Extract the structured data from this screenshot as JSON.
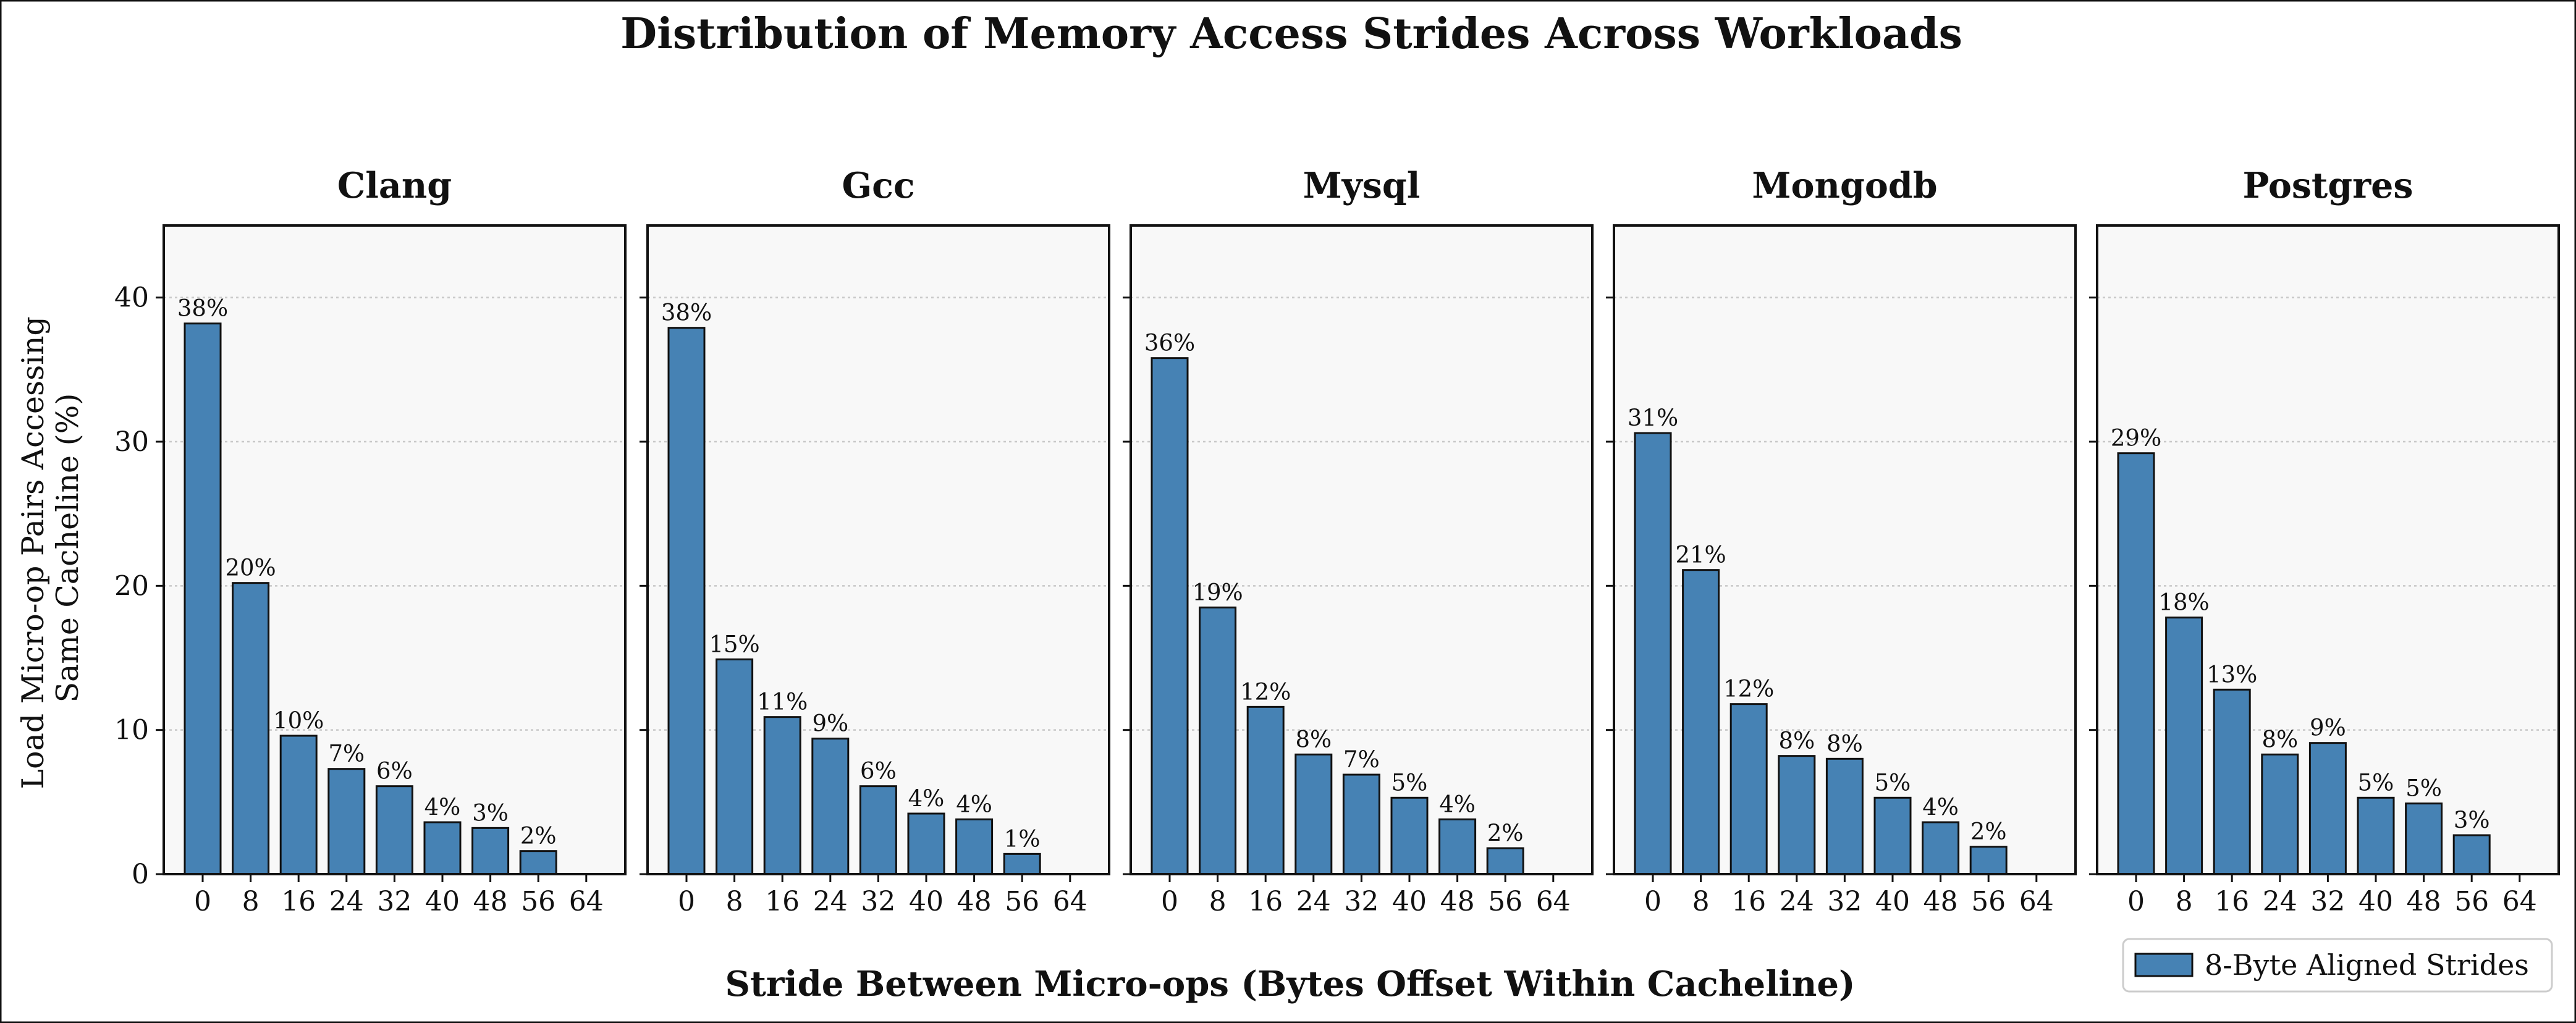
{
  "title": "Distribution of Memory Access Strides Across Workloads",
  "xlabel": "Stride Between Micro-ops (Bytes Offset Within Cacheline)",
  "ylabel_lines": [
    "Load Micro-op Pairs Accessing",
    "Same Cacheline (%)"
  ],
  "legend": {
    "label": "8-Byte Aligned Strides",
    "placement": "lower-right"
  },
  "colors": {
    "bar": "#4682b4",
    "bar_edge": "#111111",
    "panel_bg": "#f8f8f8",
    "grid": "#c8c8c8"
  },
  "chart_data": {
    "type": "bar",
    "categories": [
      "0",
      "8",
      "16",
      "24",
      "32",
      "40",
      "48",
      "56",
      "64"
    ],
    "ylim": [
      0,
      45
    ],
    "yticks": [
      0,
      10,
      20,
      30,
      40
    ],
    "grid": "horizontal-dotted",
    "series_name": "8-Byte Aligned Strides",
    "panels": [
      {
        "title": "Clang",
        "values": [
          38.2,
          20.2,
          9.6,
          7.3,
          6.1,
          3.6,
          3.2,
          1.6,
          0
        ],
        "labels": [
          "38%",
          "20%",
          "10%",
          "7%",
          "6%",
          "4%",
          "3%",
          "2%",
          ""
        ]
      },
      {
        "title": "Gcc",
        "values": [
          37.9,
          14.9,
          10.9,
          9.4,
          6.1,
          4.2,
          3.8,
          1.4,
          0
        ],
        "labels": [
          "38%",
          "15%",
          "11%",
          "9%",
          "6%",
          "4%",
          "4%",
          "1%",
          ""
        ]
      },
      {
        "title": "Mysql",
        "values": [
          35.8,
          18.5,
          11.6,
          8.3,
          6.9,
          5.3,
          3.8,
          1.8,
          0
        ],
        "labels": [
          "36%",
          "19%",
          "12%",
          "8%",
          "7%",
          "5%",
          "4%",
          "2%",
          ""
        ]
      },
      {
        "title": "Mongodb",
        "values": [
          30.6,
          21.1,
          11.8,
          8.2,
          8.0,
          5.3,
          3.6,
          1.9,
          0
        ],
        "labels": [
          "31%",
          "21%",
          "12%",
          "8%",
          "8%",
          "5%",
          "4%",
          "2%",
          ""
        ]
      },
      {
        "title": "Postgres",
        "values": [
          29.2,
          17.8,
          12.8,
          8.3,
          9.1,
          5.3,
          4.9,
          2.7,
          0
        ],
        "labels": [
          "29%",
          "18%",
          "13%",
          "8%",
          "9%",
          "5%",
          "5%",
          "3%",
          ""
        ]
      }
    ]
  }
}
